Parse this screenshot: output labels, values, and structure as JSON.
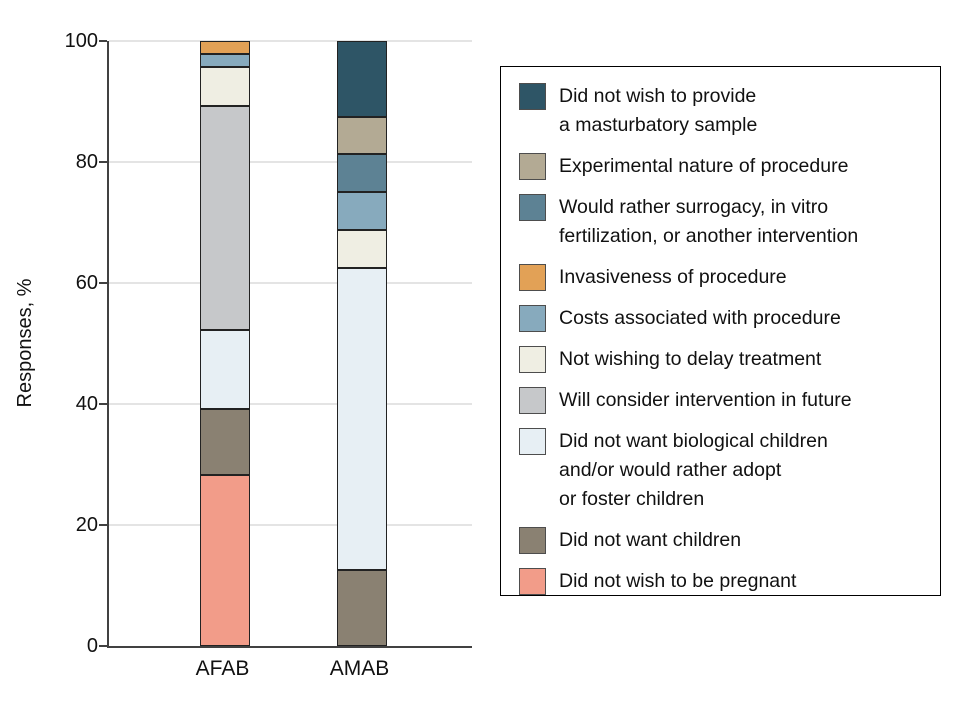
{
  "figure": {
    "y_axis_label": "Responses, %"
  },
  "chart_data": {
    "type": "bar",
    "stacked": true,
    "title": "",
    "xlabel": "",
    "ylabel": "Responses, %",
    "ylim": [
      0,
      100
    ],
    "yticks": [
      0,
      20,
      40,
      60,
      80,
      100
    ],
    "grid": "horizontal",
    "legend_position": "right",
    "categories": [
      "AFAB",
      "AMAB"
    ],
    "series": [
      {
        "name": "Did not wish to be pregnant",
        "color": "#F29C89",
        "values": [
          28.3,
          0
        ]
      },
      {
        "name": "Did not want children",
        "color": "#8A8172",
        "values": [
          10.9,
          12.5
        ]
      },
      {
        "name": "Did not want biological children and/or would rather adopt or foster children",
        "color": "#E7EFF4",
        "values": [
          13.0,
          50.0
        ]
      },
      {
        "name": "Will consider intervention in future",
        "color": "#C6C8CA",
        "values": [
          37.0,
          0
        ]
      },
      {
        "name": "Not wishing to delay treatment",
        "color": "#EFEEE3",
        "values": [
          6.5,
          6.25
        ]
      },
      {
        "name": "Costs associated with procedure",
        "color": "#87AABD",
        "values": [
          2.2,
          6.25
        ]
      },
      {
        "name": "Invasiveness of procedure",
        "color": "#E2A156",
        "values": [
          2.2,
          0
        ]
      },
      {
        "name": "Would rather surrogacy, in vitro fertilization, or another intervention",
        "color": "#5D8294",
        "values": [
          0,
          6.25
        ]
      },
      {
        "name": "Experimental nature of procedure",
        "color": "#B3AA94",
        "values": [
          0,
          6.25
        ]
      },
      {
        "name": "Did not wish to provide a masturbatory sample",
        "color": "#2E5566",
        "values": [
          0,
          12.5
        ]
      }
    ]
  },
  "legend": {
    "items": [
      {
        "key": "masturbatory-sample",
        "color": "#2E5566",
        "lines": [
          "Did not wish to provide",
          "a masturbatory sample"
        ]
      },
      {
        "key": "experimental-nature",
        "color": "#B3AA94",
        "lines": [
          "Experimental nature of procedure"
        ]
      },
      {
        "key": "surrogacy-ivf",
        "color": "#5D8294",
        "lines": [
          "Would rather surrogacy, in vitro",
          "fertilization, or another intervention"
        ]
      },
      {
        "key": "invasiveness",
        "color": "#E2A156",
        "lines": [
          "Invasiveness of procedure"
        ]
      },
      {
        "key": "costs",
        "color": "#87AABD",
        "lines": [
          "Costs associated with procedure"
        ]
      },
      {
        "key": "delay-treatment",
        "color": "#EFEEE3",
        "lines": [
          "Not wishing to delay treatment"
        ]
      },
      {
        "key": "consider-future",
        "color": "#C6C8CA",
        "lines": [
          "Will consider intervention in future"
        ]
      },
      {
        "key": "no-biological-children",
        "color": "#E7EFF4",
        "lines": [
          "Did not want biological children",
          "and/or would rather adopt",
          "or foster children"
        ]
      },
      {
        "key": "no-children",
        "color": "#8A8172",
        "lines": [
          "Did not want children"
        ]
      },
      {
        "key": "no-pregnancy",
        "color": "#F29C89",
        "lines": [
          "Did not wish to be pregnant"
        ]
      }
    ]
  }
}
